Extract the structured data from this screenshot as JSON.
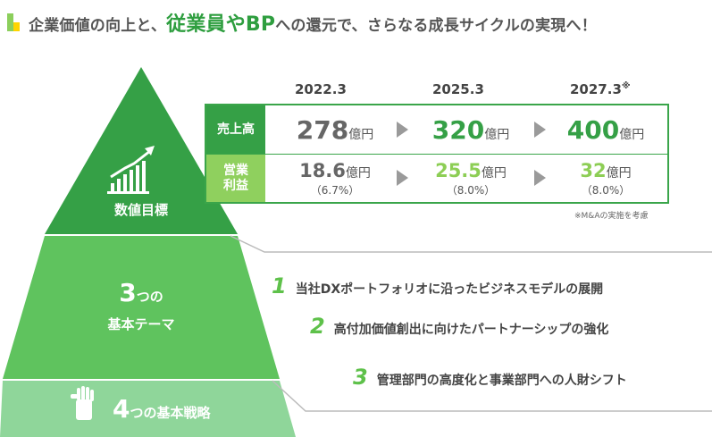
{
  "header": {
    "title_part1": "企業価値の向上と、",
    "title_em": "従業員やBP",
    "title_part2": "への還元で、さらなる成長サイクルの実現へ！"
  },
  "pyramid": {
    "top_label": "数値目標",
    "middle_number": "3",
    "middle_suffix": "つの",
    "middle_label": "基本テーマ",
    "bottom_number": "4",
    "bottom_label": "つの基本戦略",
    "colors": {
      "top": "#35a046",
      "middle": "#5fc35e",
      "bottom": "#8fd69a"
    }
  },
  "targets": {
    "years": [
      "2022.3",
      "2025.3",
      "2027.3"
    ],
    "year_note_mark": "※",
    "sales": {
      "label": "売上高",
      "values": [
        "278",
        "320",
        "400"
      ],
      "unit": "億円"
    },
    "operating_profit": {
      "label_line1": "営業",
      "label_line2": "利益",
      "values": [
        "18.6",
        "25.5",
        "32"
      ],
      "unit": "億円",
      "margins": [
        "（6.7%）",
        "（8.0%）",
        "（8.0%）"
      ]
    },
    "footnote": "※M&Aの実施を考慮",
    "colors": {
      "gray": "#666666",
      "green_dark": "#35a046",
      "green_light": "#8dce55"
    }
  },
  "strategies": [
    {
      "num": "1",
      "text": "当社DXポートフォリオに沿ったビジネスモデルの展開"
    },
    {
      "num": "2",
      "text": "高付加価値創出に向けたパートナーシップの強化"
    },
    {
      "num": "3",
      "text": "管理部門の高度化と事業部門への人財シフト"
    }
  ]
}
